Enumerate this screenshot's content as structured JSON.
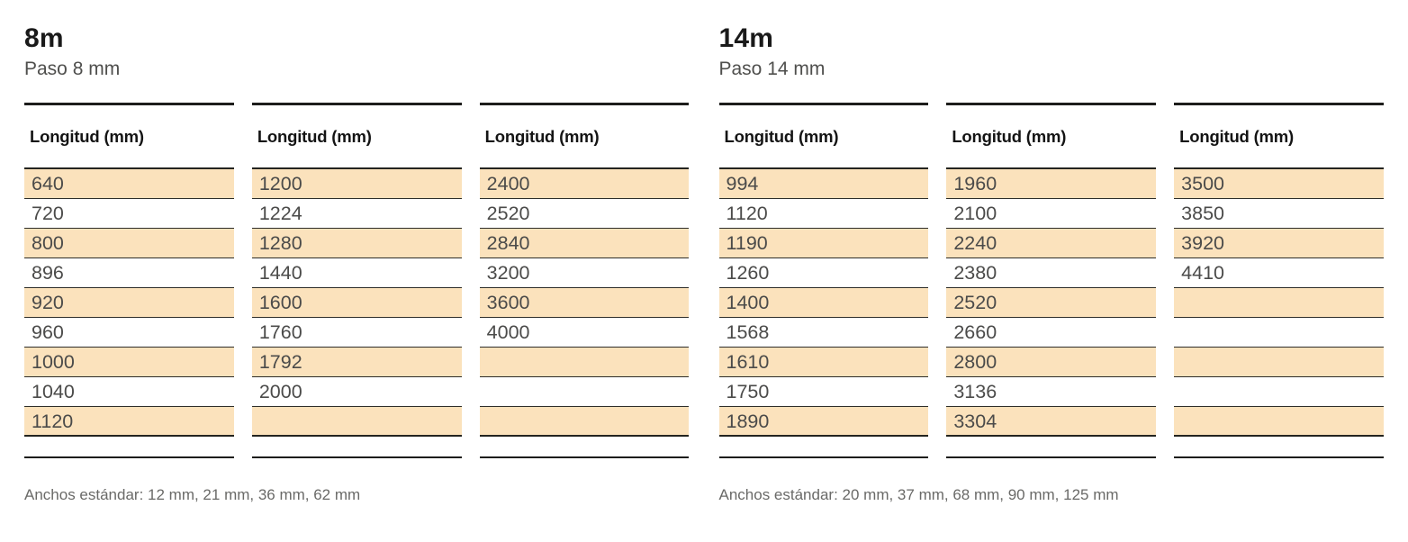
{
  "page": {
    "background": "#ffffff",
    "stripe_color": "#fbe2bc",
    "rule_color": "#1d1d1b",
    "row_border_color": "#2e2e2a",
    "number_text_color": "#4b4b4a",
    "note_text_color": "#6a6a68"
  },
  "tables": [
    {
      "title": "8m",
      "subtitle": "Paso 8 mm",
      "column_header": "Longitud (mm)",
      "columns": [
        [
          "640",
          "720",
          "800",
          "896",
          "920",
          "960",
          "1000",
          "1040",
          "1120"
        ],
        [
          "1200",
          "1224",
          "1280",
          "1440",
          "1600",
          "1760",
          "1792",
          "2000",
          ""
        ],
        [
          "2400",
          "2520",
          "2840",
          "3200",
          "3600",
          "4000",
          "",
          "",
          ""
        ]
      ],
      "note": "Anchos estándar: 12 mm, 21 mm, 36 mm, 62 mm"
    },
    {
      "title": "14m",
      "subtitle": "Paso 14 mm",
      "column_header": "Longitud (mm)",
      "columns": [
        [
          "994",
          "1120",
          "1190",
          "1260",
          "1400",
          "1568",
          "1610",
          "1750",
          "1890"
        ],
        [
          "1960",
          "2100",
          "2240",
          "2380",
          "2520",
          "2660",
          "2800",
          "3136",
          "3304"
        ],
        [
          "3500",
          "3850",
          "3920",
          "4410",
          "",
          "",
          "",
          "",
          ""
        ]
      ],
      "note": "Anchos estándar: 20 mm, 37 mm, 68 mm, 90 mm, 125 mm"
    }
  ]
}
